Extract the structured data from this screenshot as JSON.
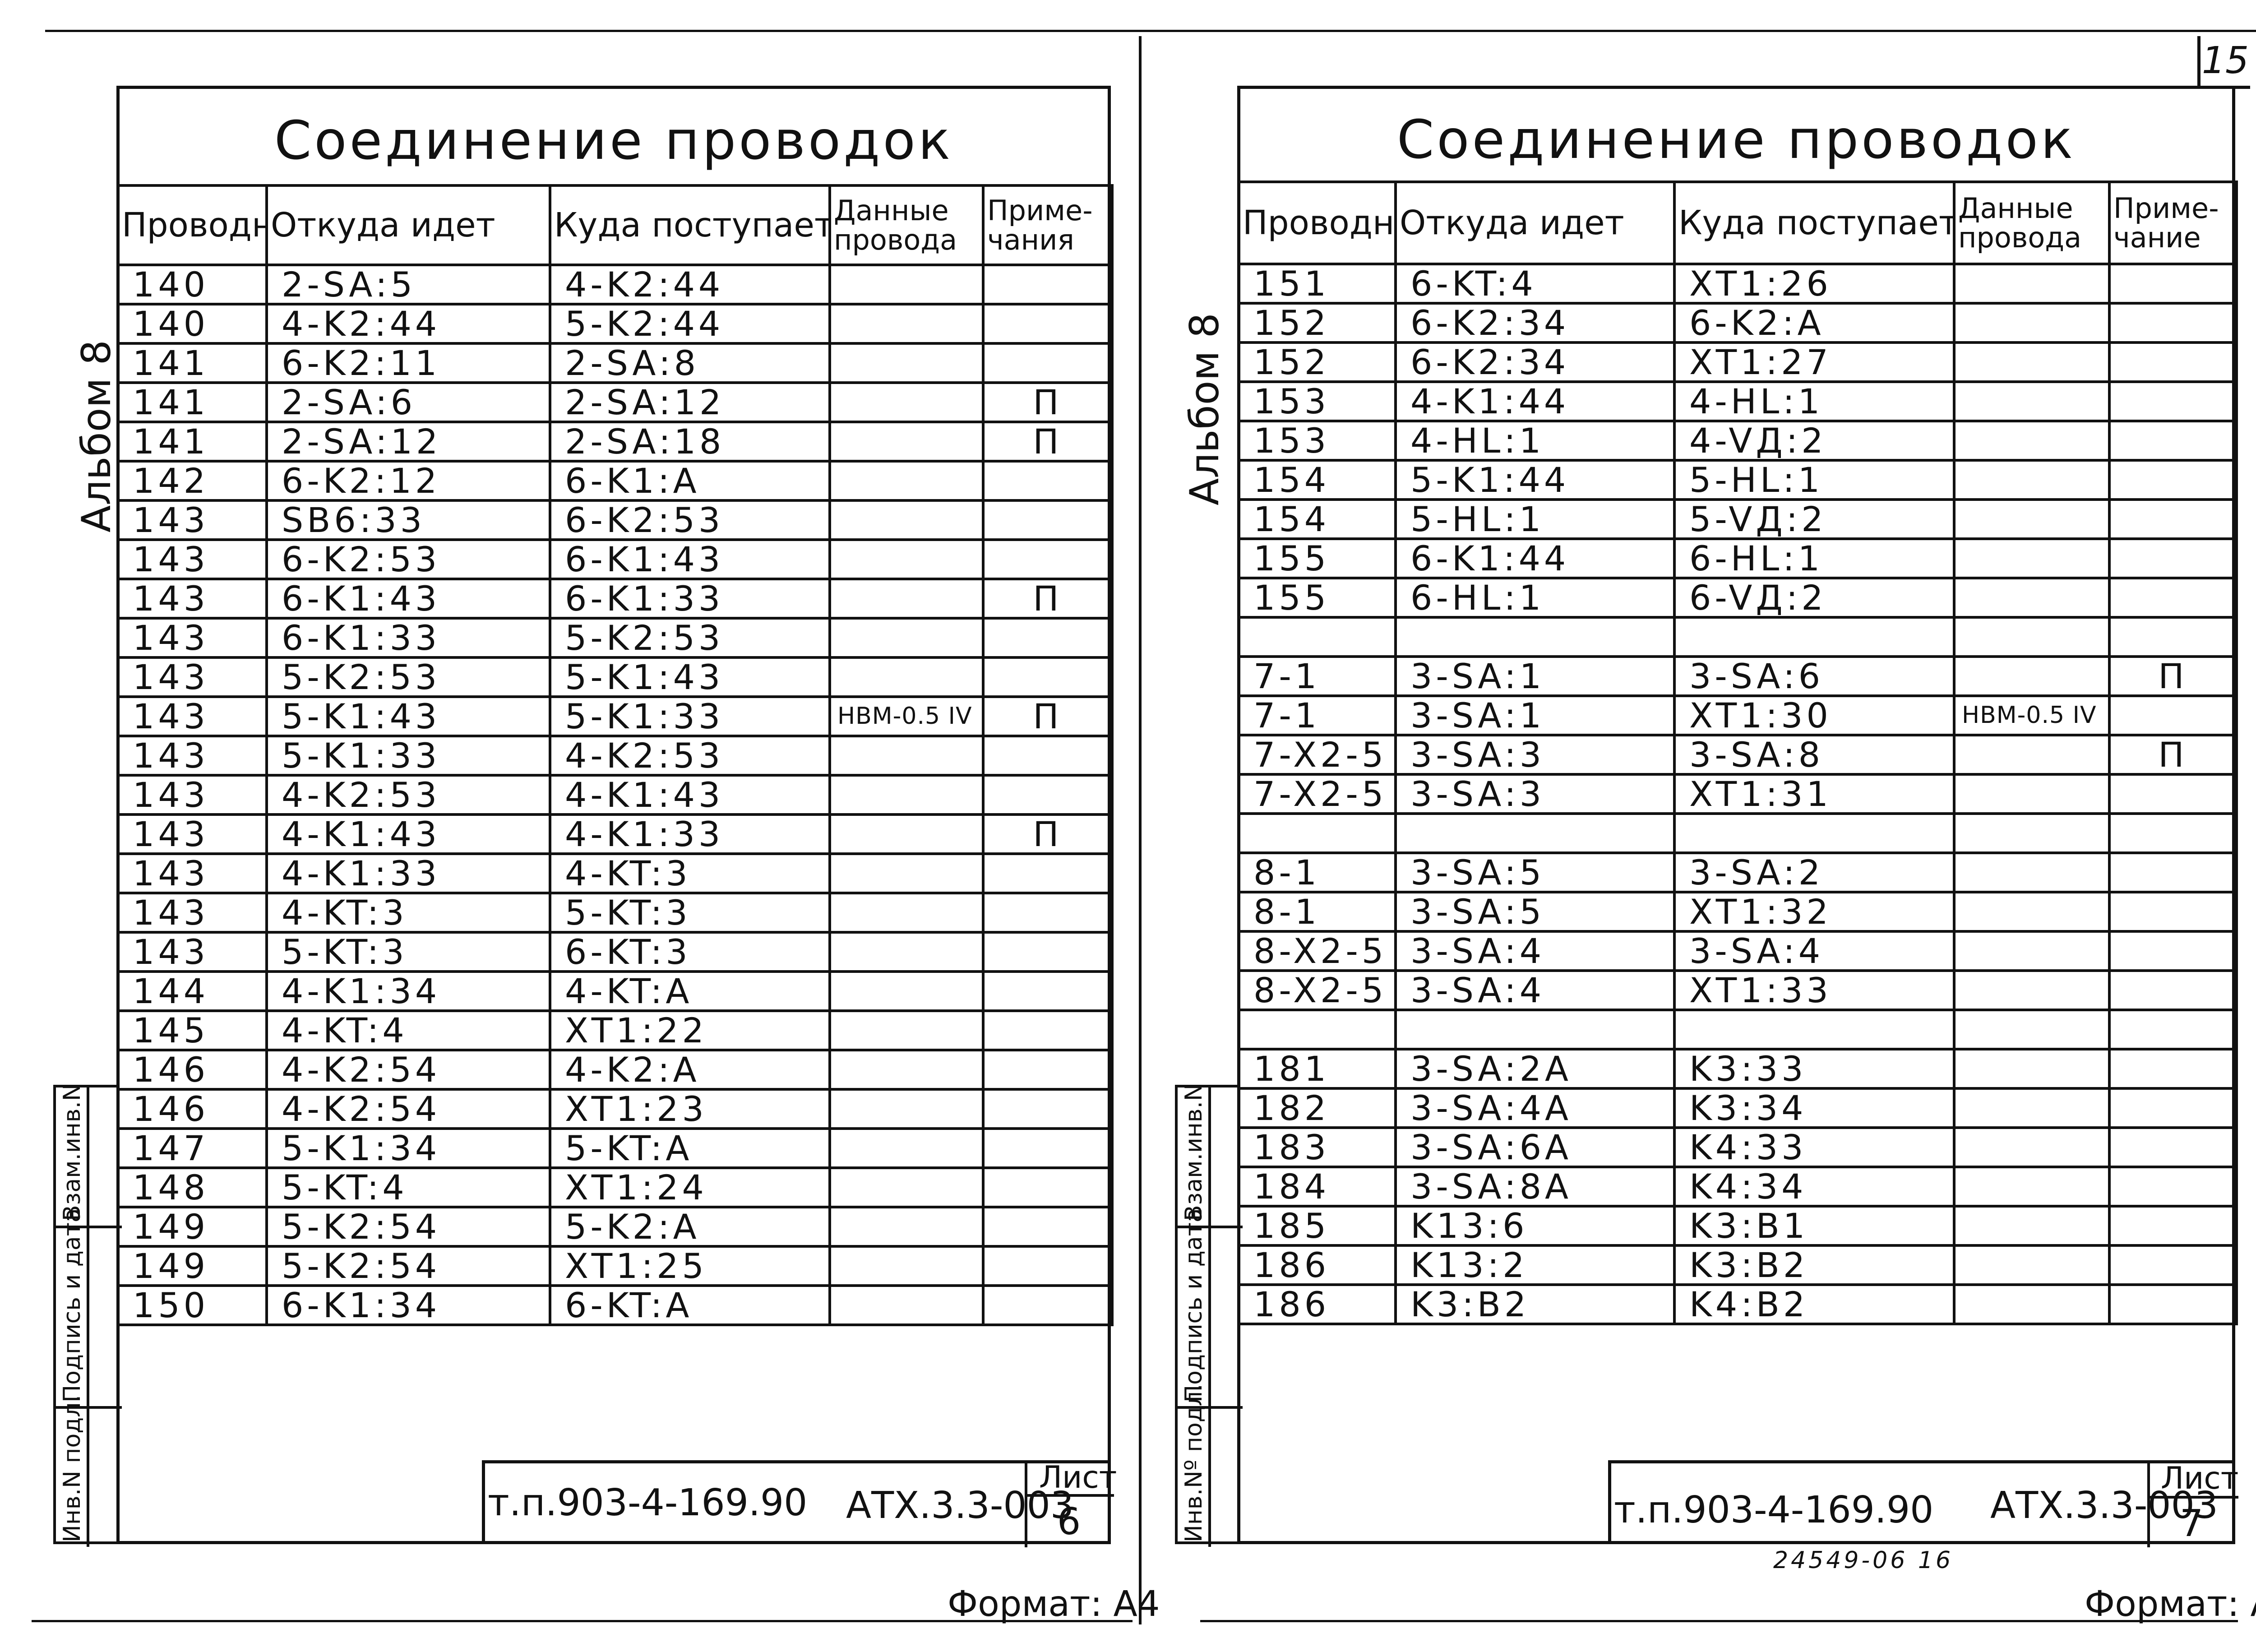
{
  "page_number": "15",
  "album_label": "Альбом 8",
  "side_stamp": [
    "Инв.N подл.",
    "Подпись и дата",
    "Взам.инв.N"
  ],
  "side_stamp_right": [
    "Инв.Nº подл.",
    "Подпись и дата",
    "Взам.инв.N"
  ],
  "format_label": "Формат: А4",
  "archive_number": "24549-06  16",
  "left": {
    "title": "Соединение проводок",
    "headers": [
      "Проводник",
      "Откуда идет",
      "Куда поступает",
      "Данные провода",
      "Приме-чания"
    ],
    "rows": [
      [
        "140",
        "2-SA:5",
        "4-K2:44",
        "",
        ""
      ],
      [
        "140",
        "4-K2:44",
        "5-K2:44",
        "",
        ""
      ],
      [
        "141",
        "6-K2:11",
        "2-SA:8",
        "",
        ""
      ],
      [
        "141",
        "2-SA:6",
        "2-SA:12",
        "",
        "П"
      ],
      [
        "141",
        "2-SA:12",
        "2-SA:18",
        "",
        "П"
      ],
      [
        "142",
        "6-K2:12",
        "6-K1:A",
        "",
        ""
      ],
      [
        "143",
        "SB6:33",
        "6-K2:53",
        "",
        ""
      ],
      [
        "143",
        "6-K2:53",
        "6-K1:43",
        "",
        ""
      ],
      [
        "143",
        "6-K1:43",
        "6-K1:33",
        "",
        "П"
      ],
      [
        "143",
        "6-K1:33",
        "5-K2:53",
        "",
        ""
      ],
      [
        "143",
        "5-K2:53",
        "5-K1:43",
        "",
        ""
      ],
      [
        "143",
        "5-K1:43",
        "5-K1:33",
        "НВМ-0.5 IV",
        "П"
      ],
      [
        "143",
        "5-K1:33",
        "4-K2:53",
        "",
        ""
      ],
      [
        "143",
        "4-K2:53",
        "4-K1:43",
        "",
        ""
      ],
      [
        "143",
        "4-K1:43",
        "4-K1:33",
        "",
        "П"
      ],
      [
        "143",
        "4-K1:33",
        "4-KT:3",
        "",
        ""
      ],
      [
        "143",
        "4-KT:3",
        "5-KT:3",
        "",
        ""
      ],
      [
        "143",
        "5-KT:3",
        "6-KT:3",
        "",
        ""
      ],
      [
        "144",
        "4-K1:34",
        "4-KT:A",
        "",
        ""
      ],
      [
        "145",
        "4-KT:4",
        "XT1:22",
        "",
        ""
      ],
      [
        "146",
        "4-K2:54",
        "4-K2:A",
        "",
        ""
      ],
      [
        "146",
        "4-K2:54",
        "XT1:23",
        "",
        ""
      ],
      [
        "147",
        "5-K1:34",
        "5-KT:A",
        "",
        ""
      ],
      [
        "148",
        "5-KT:4",
        "XT1:24",
        "",
        ""
      ],
      [
        "149",
        "5-K2:54",
        "5-K2:A",
        "",
        ""
      ],
      [
        "149",
        "5-K2:54",
        "XT1:25",
        "",
        ""
      ],
      [
        "150",
        "6-K1:34",
        "6-KT:A",
        "",
        ""
      ]
    ],
    "title_block": {
      "doc": "т.п.903-4-169.90",
      "code": "АТХ.3.3-003",
      "sheet_label": "Лист",
      "sheet": "6"
    }
  },
  "right": {
    "title": "Соединение проводок",
    "headers": [
      "Проводник",
      "Откуда идет",
      "Куда поступает",
      "Данные провода",
      "Приме-чание"
    ],
    "rows": [
      [
        "151",
        "6-KT:4",
        "XT1:26",
        "",
        ""
      ],
      [
        "152",
        "6-K2:34",
        "6-K2:A",
        "",
        ""
      ],
      [
        "152",
        "6-K2:34",
        "XT1:27",
        "",
        ""
      ],
      [
        "153",
        "4-K1:44",
        "4-HL:1",
        "",
        ""
      ],
      [
        "153",
        "4-HL:1",
        "4-VД:2",
        "",
        ""
      ],
      [
        "154",
        "5-K1:44",
        "5-HL:1",
        "",
        ""
      ],
      [
        "154",
        "5-HL:1",
        "5-VД:2",
        "",
        ""
      ],
      [
        "155",
        "6-K1:44",
        "6-HL:1",
        "",
        ""
      ],
      [
        "155",
        "6-HL:1",
        "6-VД:2",
        "",
        ""
      ],
      [
        "",
        "",
        "",
        "",
        ""
      ],
      [
        "7-1",
        "3-SA:1",
        "3-SA:6",
        "",
        "П"
      ],
      [
        "7-1",
        "3-SA:1",
        "XT1:30",
        "НВМ-0.5 IV",
        ""
      ],
      [
        "7-X2-5",
        "3-SA:3",
        "3-SA:8",
        "",
        "П"
      ],
      [
        "7-X2-5",
        "3-SA:3",
        "XT1:31",
        "",
        ""
      ],
      [
        "",
        "",
        "",
        "",
        ""
      ],
      [
        "8-1",
        "3-SA:5",
        "3-SA:2",
        "",
        ""
      ],
      [
        "8-1",
        "3-SA:5",
        "XT1:32",
        "",
        ""
      ],
      [
        "8-X2-5",
        "3-SA:4",
        "3-SA:4",
        "",
        ""
      ],
      [
        "8-X2-5",
        "3-SA:4",
        "XT1:33",
        "",
        ""
      ],
      [
        "",
        "",
        "",
        "",
        ""
      ],
      [
        "181",
        "3-SA:2A",
        "K3:33",
        "",
        ""
      ],
      [
        "182",
        "3-SA:4A",
        "K3:34",
        "",
        ""
      ],
      [
        "183",
        "3-SA:6A",
        "K4:33",
        "",
        ""
      ],
      [
        "184",
        "3-SA:8A",
        "K4:34",
        "",
        ""
      ],
      [
        "185",
        "K13:6",
        "K3:B1",
        "",
        ""
      ],
      [
        "186",
        "K13:2",
        "K3:B2",
        "",
        ""
      ],
      [
        "186",
        "K3:B2",
        "K4:B2",
        "",
        ""
      ]
    ],
    "title_block": {
      "doc": "т.п.903-4-169.90",
      "code": "АТХ.3.3-003",
      "sheet_label": "Лист",
      "sheet": "7"
    }
  }
}
